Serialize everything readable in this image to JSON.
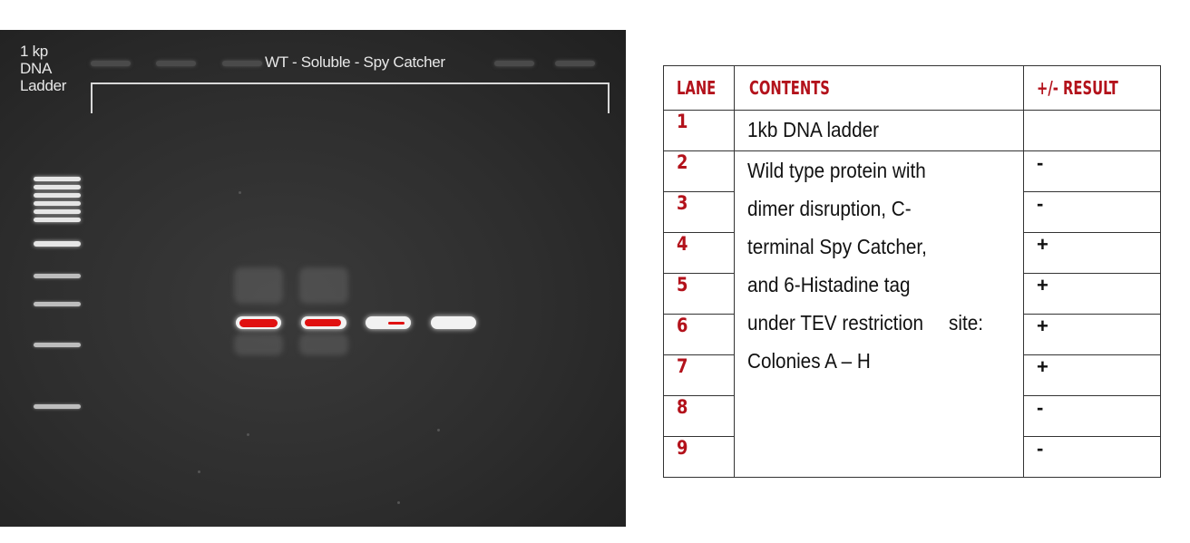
{
  "gel": {
    "ladder_label_lines": [
      "1 kp",
      "DNA",
      "Ladder"
    ],
    "sample_group_label": "WT - Soluble - Spy Catcher"
  },
  "table": {
    "headers": [
      "LANE",
      "CONTENTS",
      "+/- RESULT"
    ],
    "row1": {
      "lane": "1",
      "contents": "1kb DNA ladder",
      "result": ""
    },
    "shared_contents_lines": [
      "Wild type protein with",
      "dimer disruption, C-",
      "terminal Spy Catcher,",
      "and 6-Histadine tag",
      "under TEV restriction",
      "site:",
      "Colonies A – H"
    ],
    "rows": [
      {
        "lane": "2",
        "result": "-"
      },
      {
        "lane": "3",
        "result": "-"
      },
      {
        "lane": "4",
        "result": "+"
      },
      {
        "lane": "5",
        "result": "+"
      },
      {
        "lane": "6",
        "result": "+"
      },
      {
        "lane": "7",
        "result": "+"
      },
      {
        "lane": "8",
        "result": "-"
      },
      {
        "lane": "9",
        "result": "-"
      }
    ]
  },
  "colors": {
    "header_red": "#b3121b",
    "saturated_band_red": "#e01010",
    "gel_background": "#2d2d2d"
  }
}
